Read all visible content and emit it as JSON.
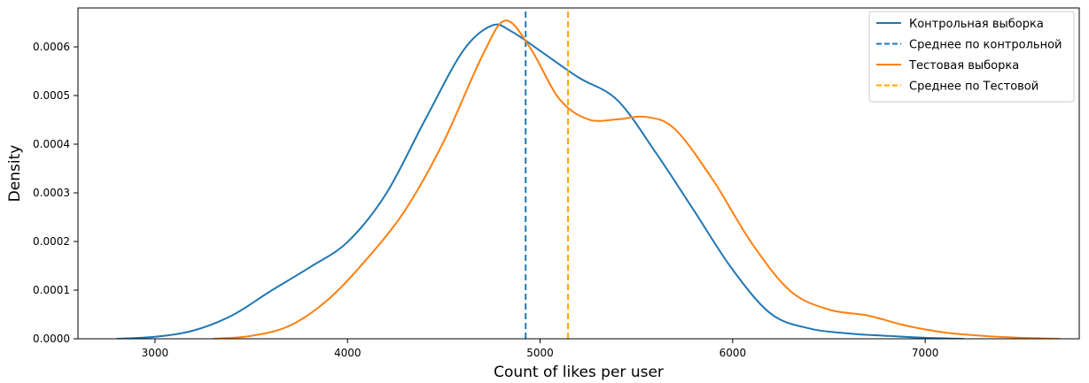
{
  "chart_data": {
    "type": "line",
    "xlabel": "Count of likes per user",
    "ylabel": "Density",
    "xlim": [
      2600,
      7800
    ],
    "ylim": [
      0,
      0.00068
    ],
    "x_ticks": [
      3000,
      4000,
      5000,
      6000,
      7000
    ],
    "x_tick_labels": [
      "3000",
      "4000",
      "5000",
      "6000",
      "7000"
    ],
    "y_ticks": [
      0,
      0.0001,
      0.0002,
      0.0003,
      0.0004,
      0.0005,
      0.0006
    ],
    "y_tick_labels": [
      "0.0000",
      "0.0001",
      "0.0002",
      "0.0003",
      "0.0004",
      "0.0005",
      "0.0006"
    ],
    "grid": false,
    "legend_position": "top-right",
    "series": [
      {
        "name": "Контрольная выборка",
        "style": "solid",
        "color": "#1f77b4",
        "x": [
          2800,
          3000,
          3200,
          3400,
          3600,
          3800,
          4000,
          4200,
          4400,
          4600,
          4750,
          4850,
          5000,
          5200,
          5400,
          5600,
          5800,
          6000,
          6200,
          6400,
          6600,
          6800,
          7000,
          7200
        ],
        "y": [
          0.0,
          4e-06,
          1.7e-05,
          4.8e-05,
          9.8e-05,
          0.000146,
          0.000199,
          0.000298,
          0.000448,
          0.000592,
          0.000644,
          0.000632,
          0.000592,
          0.000537,
          0.000491,
          0.000383,
          0.000263,
          0.000142,
          5.1e-05,
          2.1e-05,
          1.1e-05,
          6e-06,
          2e-06,
          0.0
        ]
      },
      {
        "name": "Среднее по контрольной",
        "style": "dashed",
        "color": "#1f77b4",
        "x": [
          4925,
          4925
        ],
        "y": [
          0,
          0.00068
        ]
      },
      {
        "name": "Тестовая выборка",
        "style": "solid",
        "color": "#ff7f0e",
        "x": [
          3300,
          3500,
          3700,
          3900,
          4100,
          4300,
          4500,
          4700,
          4820,
          4950,
          5100,
          5250,
          5400,
          5550,
          5700,
          5900,
          6100,
          6300,
          6500,
          6700,
          6900,
          7100,
          7300,
          7500,
          7700
        ],
        "y": [
          0.0,
          6e-06,
          2.7e-05,
          8.1e-05,
          0.000164,
          0.000265,
          0.000406,
          0.000582,
          0.000654,
          0.000597,
          0.000493,
          0.000451,
          0.000451,
          0.000456,
          0.000431,
          0.000325,
          0.000196,
          9.8e-05,
          6e-05,
          4.8e-05,
          2.7e-05,
          1.3e-05,
          6e-06,
          2e-06,
          0.0
        ]
      },
      {
        "name": "Среднее по Тестовой",
        "style": "dashed",
        "color": "#ffa500",
        "x": [
          5145,
          5145
        ],
        "y": [
          0,
          0.00068
        ]
      }
    ]
  }
}
